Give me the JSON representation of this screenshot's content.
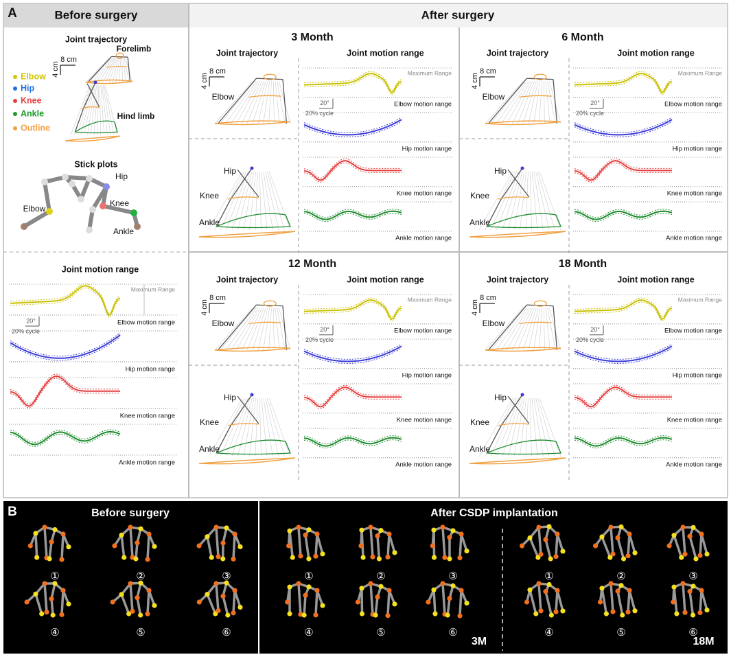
{
  "panel_a": {
    "label": "A",
    "before": {
      "header": "Before surgery",
      "trajectory": {
        "title": "Joint trajectory",
        "scale_v": "4 cm",
        "scale_h": "8 cm",
        "forelimb": "Forelimb",
        "hind_limb": "Hind limb",
        "legend": [
          "Elbow",
          "Hip",
          "Knee",
          "Ankle",
          "Outline"
        ]
      },
      "stick": {
        "title": "Stick plots",
        "hip": "Hip",
        "knee": "Knee",
        "elbow": "Elbow",
        "ankle": "Ankle"
      },
      "motion": {
        "title": "Joint motion range",
        "max_label": "Maximum Range",
        "scale_angle": "20°",
        "scale_cycle": "20% cycle",
        "rows": [
          "Elbow motion range",
          "Hip motion range",
          "Knee motion range",
          "Ankle motion range"
        ]
      }
    },
    "after": {
      "header": "After surgery",
      "timepoints": [
        {
          "title": "3 Month",
          "trajectory": {
            "title": "Joint trajectory",
            "scale_v": "4 cm",
            "scale_h": "8 cm",
            "fore_label": "Elbow",
            "hind_labels": [
              "Hip",
              "Knee",
              "Ankle"
            ]
          },
          "motion": {
            "title": "Joint motion range",
            "max_label": "Maximum Range",
            "scale_angle": "20°",
            "scale_cycle": "20% cycle",
            "rows": [
              "Elbow motion range",
              "Hip motion range",
              "Knee motion range",
              "Ankle motion range"
            ]
          }
        },
        {
          "title": "6 Month",
          "trajectory": {
            "title": "Joint trajectory",
            "scale_v": "4 cm",
            "scale_h": "8 cm",
            "fore_label": "Elbow",
            "hind_labels": [
              "Hip",
              "Knee",
              "Ankle"
            ]
          },
          "motion": {
            "title": "Joint motion range",
            "max_label": "Maximum Range",
            "scale_angle": "20°",
            "scale_cycle": "20% cycle",
            "rows": [
              "Elbow motion range",
              "Hip motion range",
              "Knee motion range",
              "Ankle motion range"
            ]
          }
        },
        {
          "title": "12 Month",
          "trajectory": {
            "title": "Joint trajectory",
            "scale_v": "4 cm",
            "scale_h": "8 cm",
            "fore_label": "Elbow",
            "hind_labels": [
              "Hip",
              "Knee",
              "Ankle"
            ]
          },
          "motion": {
            "title": "Joint motion range",
            "max_label": "Maximum Range",
            "scale_angle": "20°",
            "scale_cycle": "20% cycle",
            "rows": [
              "Elbow motion range",
              "Hip motion range",
              "Knee motion range",
              "Ankle motion range"
            ]
          }
        },
        {
          "title": "18 Month",
          "trajectory": {
            "title": "Joint trajectory",
            "scale_v": "4 cm",
            "scale_h": "8 cm",
            "fore_label": "Elbow",
            "hind_labels": [
              "Hip",
              "Knee",
              "Ankle"
            ]
          },
          "motion": {
            "title": "Joint motion range",
            "max_label": "Maximum Range",
            "scale_angle": "20°",
            "scale_cycle": "20% cycle",
            "rows": [
              "Elbow motion range",
              "Hip motion range",
              "Knee motion range",
              "Ankle motion range"
            ]
          }
        }
      ]
    }
  },
  "panel_b": {
    "label": "B",
    "before": {
      "header": "Before surgery",
      "poses": [
        "①",
        "②",
        "③",
        "④",
        "⑤",
        "⑥"
      ]
    },
    "after": {
      "header": "After CSDP implantation",
      "groups": [
        {
          "tag": "3M",
          "poses": [
            "①",
            "②",
            "③",
            "④",
            "⑤",
            "⑥"
          ]
        },
        {
          "tag": "18M",
          "poses": [
            "①",
            "②",
            "③",
            "④",
            "⑤",
            "⑥"
          ]
        }
      ]
    }
  }
}
